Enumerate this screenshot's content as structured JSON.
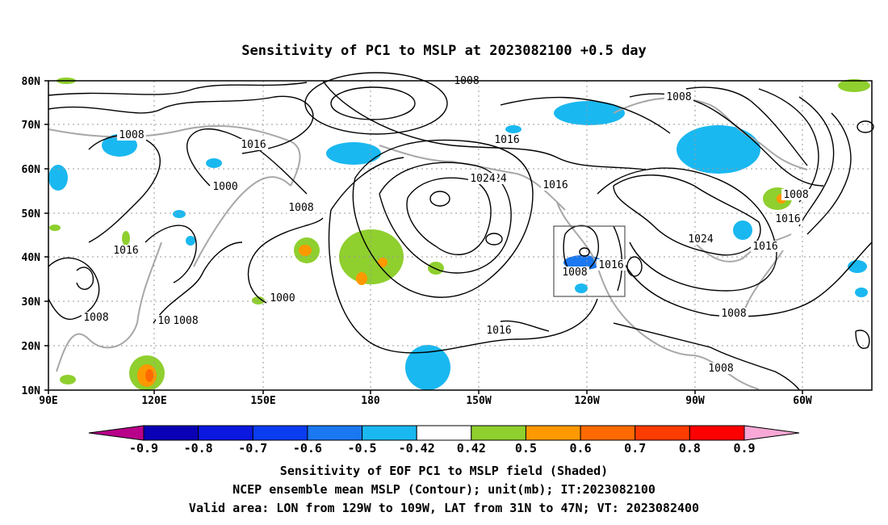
{
  "map": {
    "title": "Sensitivity of PC1 to MSLP at 2023082100 +0.5 day",
    "lon_ticks": [
      "90E",
      "120E",
      "150E",
      "180",
      "150W",
      "120W",
      "90W",
      "60W"
    ],
    "lat_ticks": [
      "80N",
      "70N",
      "60N",
      "50N",
      "40N",
      "30N",
      "20N",
      "10N"
    ],
    "contour_labels": [
      "1008",
      "1000",
      "1016",
      "1008",
      "1016",
      "1000",
      "1008",
      "1000",
      "1008",
      "1008",
      "1016",
      "1024",
      "1016",
      "1024",
      "1008",
      "1016",
      "1008",
      "1008",
      "1016",
      "1016",
      "1008",
      "1016",
      "1024",
      "1016",
      "1008",
      "1008"
    ],
    "valid_box": "Valid area: LON from 129W to 109W, LAT from 31N to 47N"
  },
  "colorbar": {
    "labels": [
      "-0.9",
      "-0.8",
      "-0.7",
      "-0.6",
      "-0.5",
      "-0.42",
      "0.42",
      "0.5",
      "0.6",
      "0.7",
      "0.8",
      "0.9"
    ],
    "colors": [
      "#b8008a",
      "#0a00b5",
      "#0a18e0",
      "#0a3cf0",
      "#1a78f0",
      "#1ab8f0",
      "#ffffff",
      "#8fcf2e",
      "#ff9900",
      "#ff6a00",
      "#ff3c00",
      "#ff0000",
      "#f7a8d6"
    ]
  },
  "captions": {
    "line1": "Sensitivity of EOF PC1 to MSLP field (Shaded)",
    "line2": "NCEP ensemble mean MSLP (Contour); unit(mb); IT:2023082100",
    "line3": "Valid area: LON from 129W to 109W, LAT from 31N to 47N; VT: 2023082400"
  }
}
